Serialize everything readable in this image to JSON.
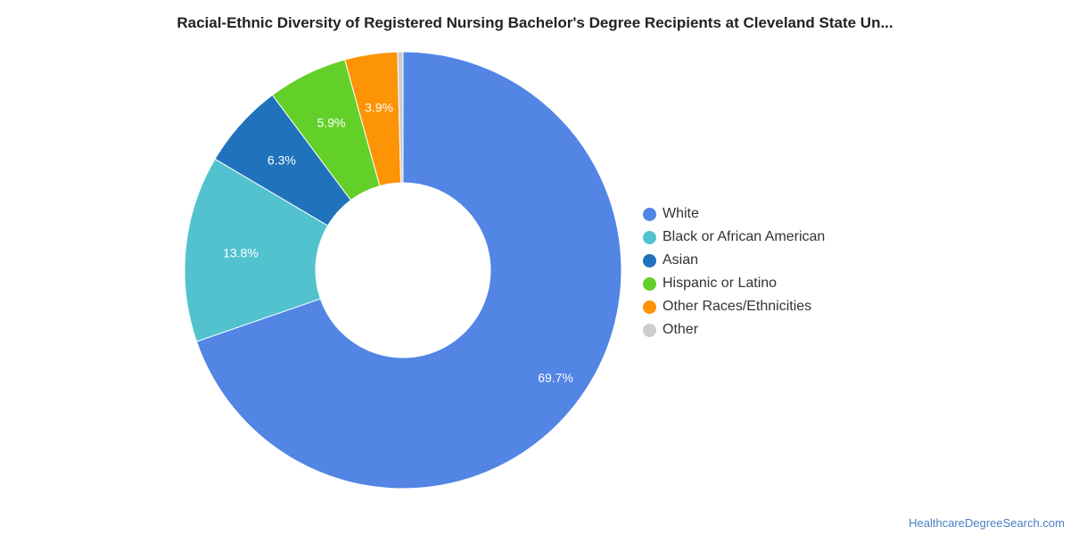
{
  "chart_data": {
    "type": "pie",
    "variant": "donut",
    "title": "Racial-Ethnic Diversity of Registered Nursing Bachelor's Degree Recipients at Cleveland State Un...",
    "categories": [
      "White",
      "Black or African American",
      "Asian",
      "Hispanic or Latino",
      "Other Races/Ethnicities",
      "Other"
    ],
    "values": [
      69.7,
      13.8,
      6.3,
      5.9,
      3.9,
      0.4
    ],
    "data_labels": [
      "69.7%",
      "13.8%",
      "6.3%",
      "5.9%",
      "3.9%",
      ""
    ],
    "colors": [
      "#5285e4",
      "#52c2ce",
      "#1f72bb",
      "#63d029",
      "#fc9406",
      "#cccccc"
    ],
    "legend_position": "right"
  },
  "credit": "HealthcareDegreeSearch.com"
}
